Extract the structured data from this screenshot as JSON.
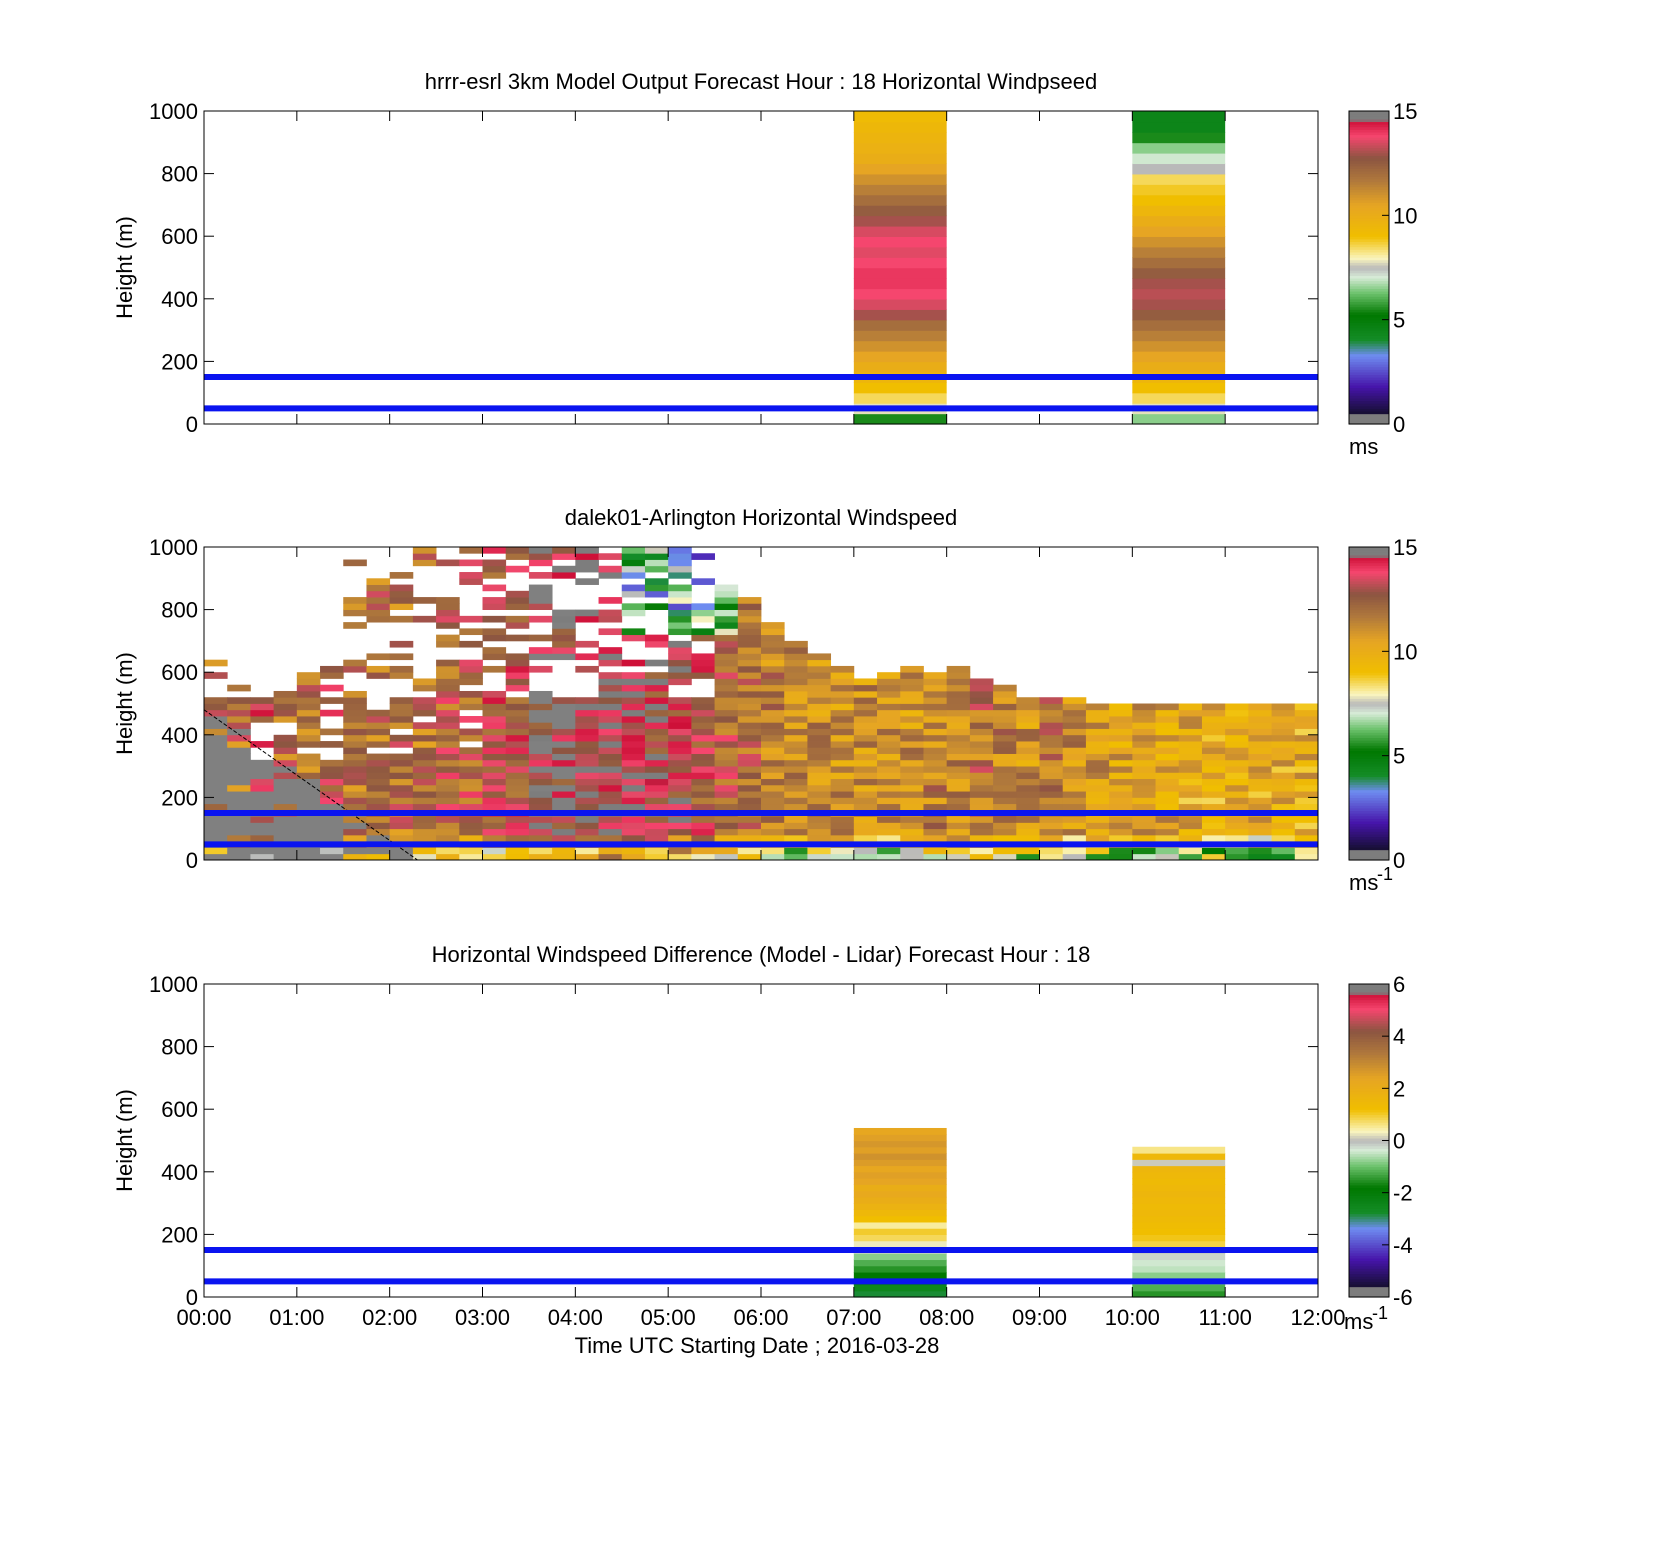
{
  "figure": {
    "x_tick_labels": [
      "00:00",
      "01:00",
      "02:00",
      "03:00",
      "04:00",
      "05:00",
      "06:00",
      "07:00",
      "08:00",
      "09:00",
      "10:00",
      "11:00",
      "12:00"
    ],
    "xlabel": "Time UTC  Starting Date ; 2016-03-28"
  },
  "chart_data": [
    {
      "type": "heatmap",
      "title": "hrrr-esrl 3km Model Output   Forecast Hour : 18 Horizontal Windpseed",
      "ylabel": "Height (m)",
      "xlim": [
        0,
        12
      ],
      "ylim": [
        0,
        1000
      ],
      "y_ticks": [
        "0",
        "200",
        "400",
        "600",
        "800",
        "1000"
      ],
      "colorbar": {
        "ticks": [
          "0",
          "5",
          "10",
          "15"
        ],
        "range": [
          0,
          15
        ],
        "unit": "ms",
        "unit_sup": ""
      },
      "reference_lines_m": [
        50,
        150
      ],
      "profiles": [
        {
          "time_range": [
            "07:00",
            "08:00"
          ],
          "height_step_m": 33.3,
          "values": [
            5.5,
            7.8,
            8.5,
            9,
            9.5,
            10,
            10.5,
            11,
            11.5,
            12,
            13,
            13.5,
            13.8,
            14,
            14,
            13.8,
            13.6,
            13.8,
            13.5,
            13,
            12.5,
            12,
            11.5,
            11,
            10.5,
            10,
            9.8,
            9.6,
            9.4,
            9.2
          ]
        },
        {
          "time_range": [
            "10:00",
            "11:00"
          ],
          "height_step_m": 33.3,
          "values": [
            6.5,
            7.8,
            8.5,
            9,
            9.5,
            10,
            10.5,
            11,
            11.5,
            12,
            12.5,
            13,
            13.2,
            13,
            12.5,
            12,
            11.5,
            11,
            10.5,
            10,
            9.5,
            9,
            8.8,
            8.5,
            7.5,
            7,
            6.5,
            5.5,
            4.5,
            4.5
          ]
        }
      ]
    },
    {
      "type": "heatmap",
      "title": "dalek01-Arlington  Horizontal Windspeed",
      "ylabel": "Height (m)",
      "xlim": [
        0,
        12
      ],
      "ylim": [
        0,
        1000
      ],
      "y_ticks": [
        "0",
        "200",
        "400",
        "600",
        "800",
        "1000"
      ],
      "colorbar": {
        "ticks": [
          "0",
          "5",
          "10",
          "15"
        ],
        "range": [
          0,
          15
        ],
        "unit": "ms",
        "unit_sup": "-1"
      },
      "reference_lines_m": [
        50,
        150
      ],
      "time_step_h": 0.25,
      "height_step_m": 20,
      "top_of_data_m": [
        650,
        550,
        550,
        530,
        600,
        650,
        950,
        900,
        1000,
        1000,
        1000,
        1000,
        1000,
        1000,
        1000,
        1000,
        1000,
        1000,
        1000,
        1000,
        1000,
        1000,
        870,
        830,
        750,
        700,
        650,
        620,
        580,
        600,
        610,
        590,
        610,
        580,
        560,
        510,
        520,
        510,
        490,
        500,
        500,
        500,
        500,
        500,
        500,
        500,
        500,
        500
      ],
      "mean_speed": [
        12,
        12,
        13,
        12,
        12,
        13,
        12,
        12,
        12,
        12,
        12.5,
        12.5,
        13,
        13,
        13.5,
        13.5,
        14,
        14,
        14,
        13.5,
        13.5,
        13,
        12.5,
        12,
        11.5,
        11,
        11,
        11,
        11,
        11,
        11,
        11.5,
        11.5,
        12,
        11.5,
        11,
        12,
        11,
        11,
        10.5,
        10.5,
        10.5,
        10,
        10,
        10,
        10,
        10,
        10
      ],
      "missing_wedge": {
        "from_time_h": 0,
        "to_time_h": 2.3,
        "top_height_m": 480
      }
    },
    {
      "type": "heatmap",
      "title": "Horizontal Windspeed Difference (Model - Lidar) Forecast Hour : 18",
      "ylabel": "Height (m)",
      "xlim": [
        0,
        12
      ],
      "ylim": [
        0,
        1000
      ],
      "y_ticks": [
        "0",
        "200",
        "400",
        "600",
        "800",
        "1000"
      ],
      "colorbar": {
        "ticks": [
          "-6",
          "-4",
          "-2",
          "0",
          "2",
          "4",
          "6"
        ],
        "range": [
          -6,
          6
        ],
        "unit": "ms",
        "unit_sup": "-1"
      },
      "reference_lines_m": [
        50,
        150
      ],
      "profiles": [
        {
          "time_range": [
            "07:00",
            "08:00"
          ],
          "height_step_m": 20,
          "values": [
            -2.8,
            -2.5,
            -2.2,
            -1.8,
            -1.5,
            -1.2,
            -0.8,
            -0.2,
            0.3,
            0.8,
            1,
            0.5,
            1.2,
            1.5,
            1.8,
            2,
            2.2,
            2,
            2.4,
            2.5,
            2.3,
            2.6,
            2.8,
            2.5,
            2.7,
            2.5,
            2.3
          ]
        },
        {
          "time_range": [
            "10:00",
            "11:00"
          ],
          "height_step_m": 20,
          "values": [
            -1.5,
            -1.2,
            -1,
            -0.8,
            -0.5,
            -0.4,
            -0.2,
            -0.1,
            0.9,
            1.1,
            1.2,
            1.3,
            1.4,
            1.5,
            1.4,
            1.5,
            1.6,
            1.5,
            1.4,
            1.5,
            1.6,
            0.1,
            1.5,
            0.6
          ]
        }
      ]
    }
  ]
}
